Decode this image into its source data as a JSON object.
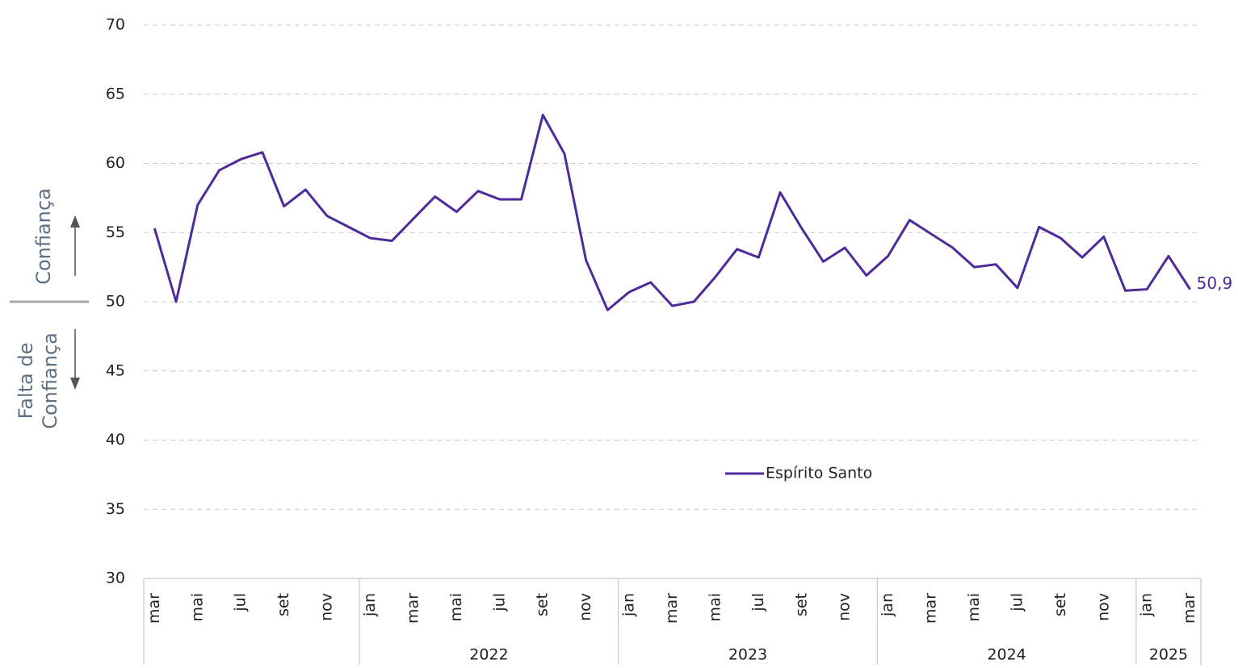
{
  "chart_data": {
    "type": "line",
    "categories": [
      "mar",
      null,
      "mai",
      null,
      "jul",
      null,
      "set",
      null,
      "nov",
      null,
      "jan",
      null,
      "mar",
      null,
      "mai",
      null,
      "jul",
      null,
      "set",
      null,
      "nov",
      null,
      "jan",
      null,
      "mar",
      null,
      "mai",
      null,
      "jul",
      null,
      "set",
      null,
      "nov",
      null,
      "jan",
      null,
      "mar",
      null,
      "mai",
      null,
      "jul",
      null,
      "set",
      null,
      "nov",
      null,
      "jan",
      null,
      "mar"
    ],
    "year_groups": [
      {
        "label": null,
        "count": 10
      },
      {
        "label": "2022",
        "count": 12
      },
      {
        "label": "2023",
        "count": 12
      },
      {
        "label": "2024",
        "count": 12
      },
      {
        "label": "2025",
        "count": 3
      }
    ],
    "series": [
      {
        "name": "Espírito Santo",
        "color": "#4f2a9a",
        "values": [
          55.3,
          50.0,
          57.0,
          59.5,
          60.3,
          60.8,
          56.9,
          58.1,
          56.2,
          55.4,
          54.6,
          54.4,
          56.0,
          57.6,
          56.5,
          58.0,
          57.4,
          57.4,
          63.5,
          60.7,
          53.0,
          49.4,
          50.7,
          51.4,
          49.7,
          50.0,
          51.8,
          53.8,
          53.2,
          57.9,
          55.3,
          52.9,
          53.9,
          51.9,
          53.3,
          55.9,
          54.9,
          53.9,
          52.5,
          52.7,
          51.0,
          55.4,
          54.6,
          53.2,
          54.7,
          50.8,
          50.9,
          53.3,
          50.9
        ],
        "end_label": "50,9"
      }
    ],
    "ylim": [
      30,
      70
    ],
    "yticks": [
      30,
      35,
      40,
      45,
      50,
      55,
      60,
      65,
      70
    ],
    "grid": true,
    "threshold": 50,
    "annotations": {
      "above": "Confiança",
      "below": [
        "Falta de",
        "Confiança"
      ]
    }
  }
}
